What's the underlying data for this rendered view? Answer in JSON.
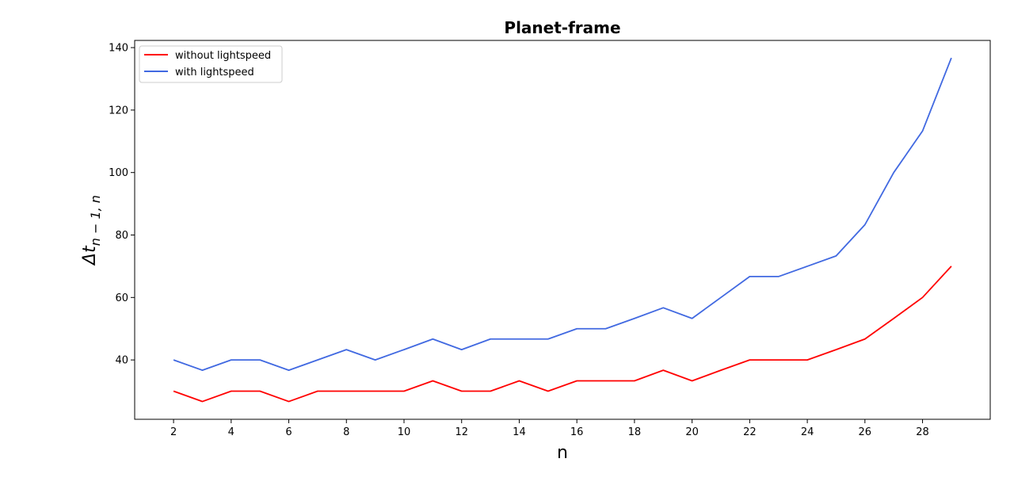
{
  "chart_data": {
    "type": "line",
    "title": "Planet-frame",
    "xlabel": "n",
    "ylabel_main": "Δt",
    "ylabel_sub": "n − 1, n",
    "xlim": [
      0.65,
      30.35
    ],
    "ylim": [
      21.0,
      142.3
    ],
    "xticks": [
      2,
      4,
      6,
      8,
      10,
      12,
      14,
      16,
      18,
      20,
      22,
      24,
      26,
      28
    ],
    "yticks": [
      40,
      60,
      80,
      100,
      120,
      140
    ],
    "grid": false,
    "legend_position": "top-left",
    "x": [
      2,
      3,
      4,
      5,
      6,
      7,
      8,
      9,
      10,
      11,
      12,
      13,
      14,
      15,
      16,
      17,
      18,
      19,
      20,
      21,
      22,
      23,
      24,
      25,
      26,
      27,
      28,
      29
    ],
    "series": [
      {
        "name": "without lightspeed",
        "color": "#ff0000",
        "values": [
          30.0,
          26.7,
          30.0,
          30.0,
          26.7,
          30.0,
          30.0,
          30.0,
          30.0,
          33.3,
          30.0,
          30.0,
          33.3,
          30.0,
          33.3,
          33.3,
          33.3,
          36.7,
          33.3,
          36.7,
          40.0,
          40.0,
          40.0,
          43.3,
          46.7,
          53.3,
          60.0,
          70.0
        ]
      },
      {
        "name": "with lightspeed",
        "color": "#4169e1",
        "values": [
          40.0,
          36.7,
          40.0,
          40.0,
          36.7,
          40.0,
          43.3,
          40.0,
          43.3,
          46.7,
          43.3,
          46.7,
          46.7,
          46.7,
          50.0,
          50.0,
          53.3,
          56.7,
          53.3,
          60.0,
          66.7,
          66.7,
          70.0,
          73.3,
          83.3,
          100.0,
          113.3,
          136.7
        ]
      }
    ]
  }
}
